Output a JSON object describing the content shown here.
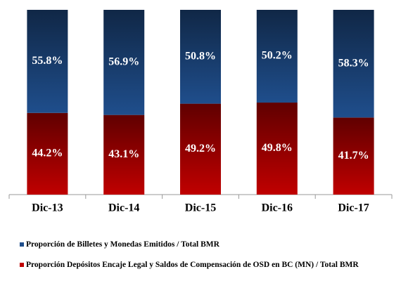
{
  "chart_data": {
    "type": "stacked_bar",
    "categories": [
      "Dic-13",
      "Dic-14",
      "Dic-15",
      "Dic-16",
      "Dic-17"
    ],
    "series": [
      {
        "name": "Proporción de Billetes y Monedas Emitidos / Total BMR",
        "color": "#1f4e8c",
        "values": [
          55.8,
          56.9,
          50.8,
          50.2,
          58.3
        ],
        "value_labels": [
          "55.8%",
          "56.9%",
          "50.8%",
          "50.2%",
          "58.3%"
        ]
      },
      {
        "name": "Proporción Depósitos Encaje Legal y Saldos de Compensación de OSD en BC (MN) / Total BMR",
        "color": "#c00000",
        "values": [
          44.2,
          43.1,
          49.2,
          49.8,
          41.7
        ],
        "value_labels": [
          "44.2%",
          "43.1%",
          "49.2%",
          "49.8%",
          "41.7%"
        ]
      }
    ]
  }
}
